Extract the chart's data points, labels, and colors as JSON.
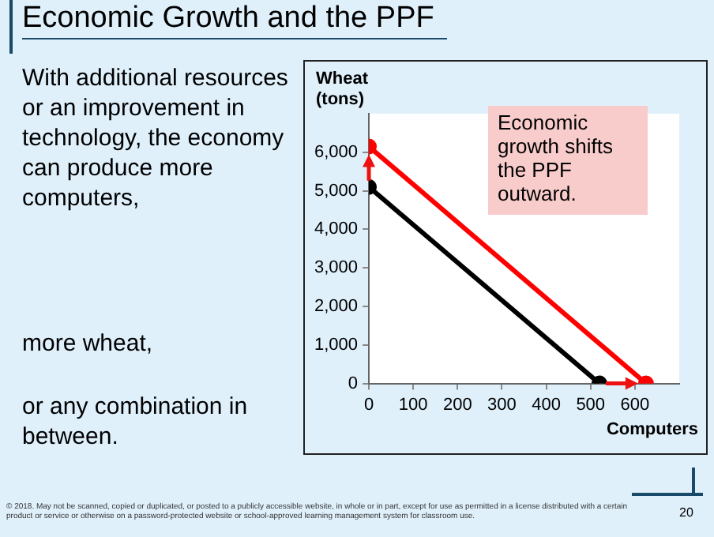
{
  "chart_data": {
    "type": "line",
    "title": "Economic Growth and the PPF",
    "xlabel": "Computers",
    "ylabel": "Wheat (tons)",
    "series": [
      {
        "color": "#000000",
        "x": [
          0,
          520
        ],
        "values": [
          5100,
          0
        ]
      },
      {
        "color": "#ff0000",
        "x": [
          0,
          625
        ],
        "values": [
          6150,
          0
        ]
      }
    ],
    "xlim": [
      0,
      700
    ],
    "xticks": [
      0,
      100,
      200,
      300,
      400,
      500,
      600
    ],
    "ylim": [
      0,
      7000
    ],
    "yticks": [
      {
        "value": 0,
        "label": "0"
      },
      {
        "value": 1000,
        "label": "1,000"
      },
      {
        "value": 2000,
        "label": "2,000"
      },
      {
        "value": 3000,
        "label": "3,000"
      },
      {
        "value": 4000,
        "label": "4,000"
      },
      {
        "value": 5000,
        "label": "5,000"
      },
      {
        "value": 6000,
        "label": "6,000"
      }
    ],
    "grid": false,
    "legend": false,
    "marker": "circle",
    "line_style": "solid",
    "annotations": [
      "With additional resources or an improvement in technology, the economy can produce more computers,",
      "more wheat,",
      "or any combination in between.",
      "Economic growth shifts the PPF outward.",
      "© 2018. May not be scanned, copied or duplicated, or posted to a publicly accessible website, in whole or in part, except for use as permitted in a license distributed with a certain product or service or otherwise on a password-protected website or school-approved learning management system for classroom use.",
      "20"
    ]
  }
}
